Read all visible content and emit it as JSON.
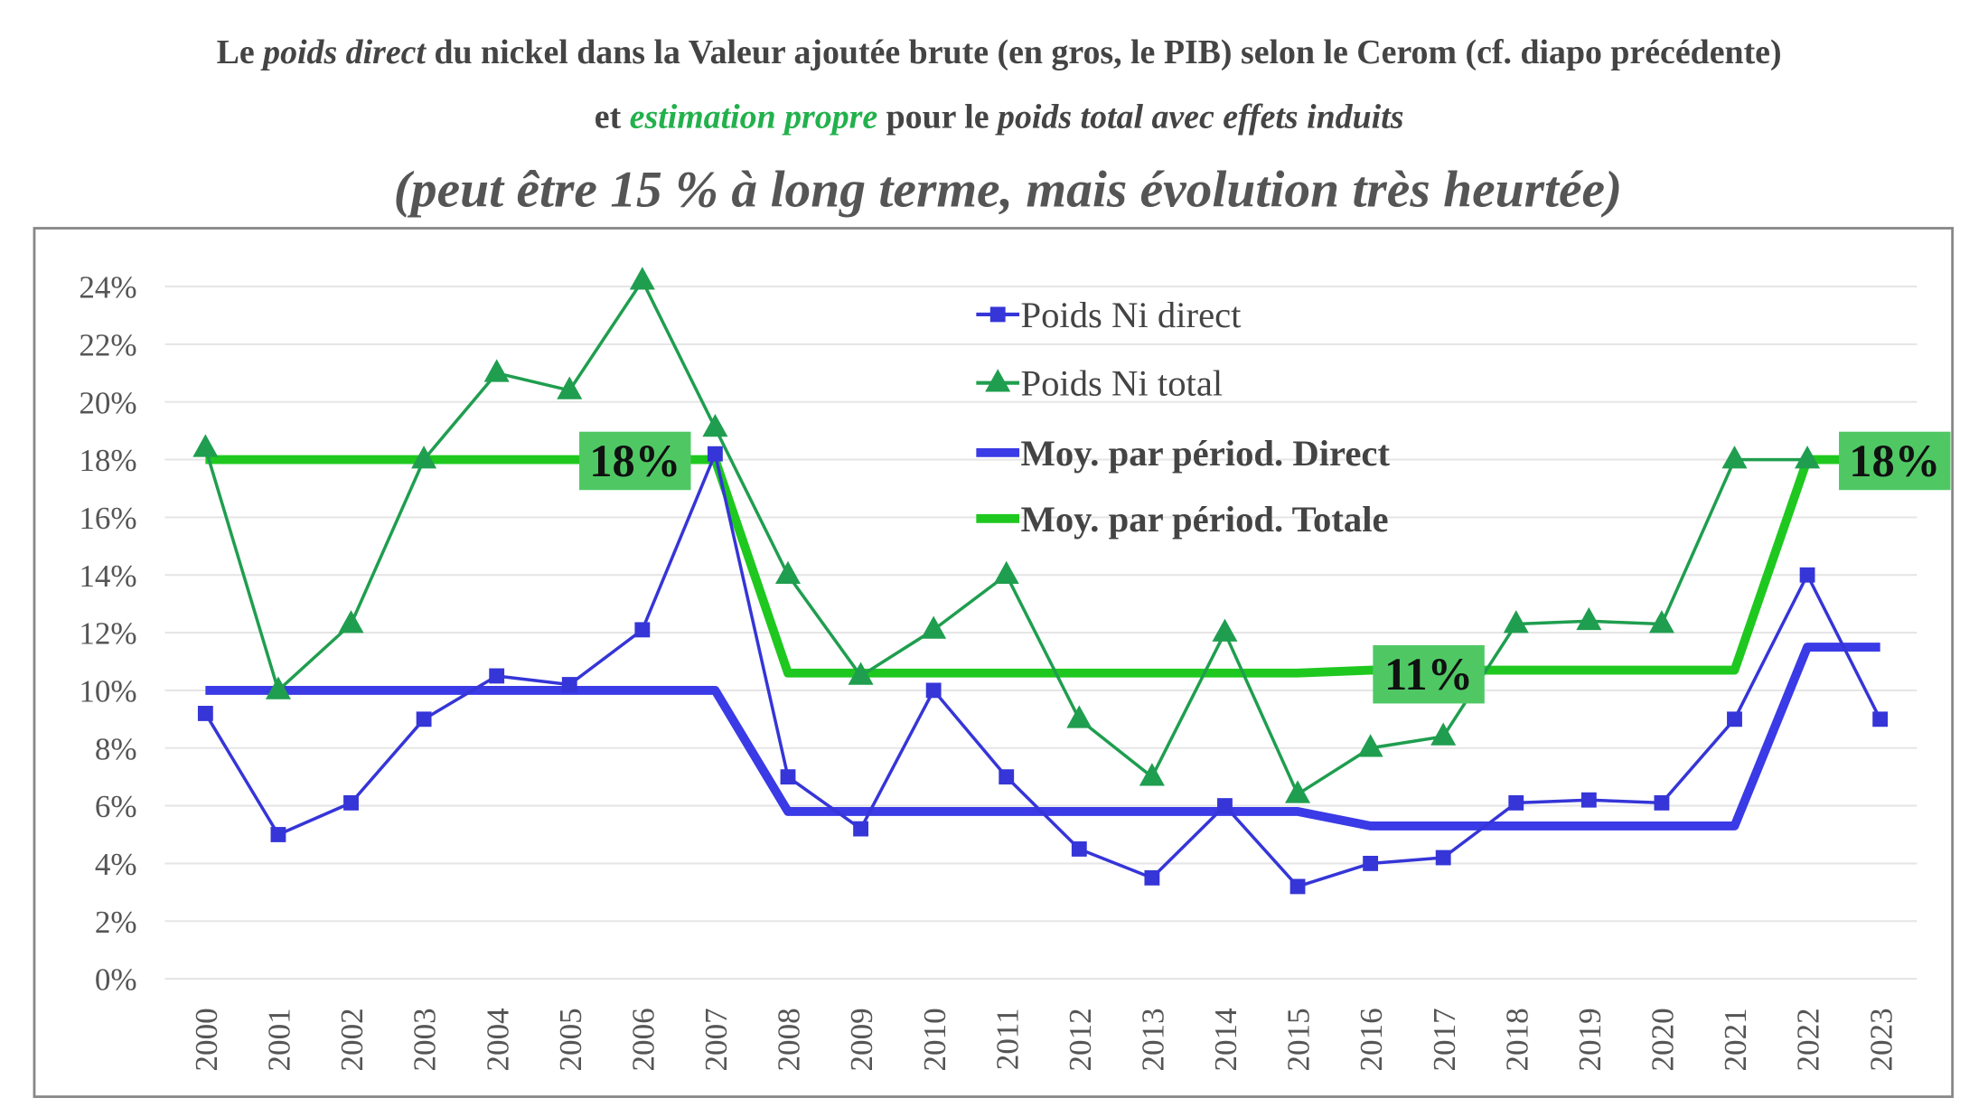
{
  "title": {
    "line1": [
      {
        "text": "Le ",
        "italic": false
      },
      {
        "text": "poids direct",
        "italic": true
      },
      {
        "text": " du nickel dans la Valeur ajoutée brute (en gros, le PIB) selon le  Cerom (cf. diapo précédente)",
        "italic": false
      }
    ],
    "line2": [
      {
        "text": "et ",
        "italic": false,
        "green": false
      },
      {
        "text": "estimation propre",
        "italic": true,
        "green": true
      },
      {
        "text": " pour le ",
        "italic": false,
        "green": false
      },
      {
        "text": "poids total avec effets induits",
        "italic": true,
        "green": false
      }
    ],
    "line3": "(peut être 15 % à long terme, mais évolution très heurtée)"
  },
  "colors": {
    "direct": "#3535d8",
    "total": "#1f9e4f",
    "avg_direct": "#3a3ae6",
    "avg_total": "#1fc81f",
    "label_bg": "#4fc864",
    "grid": "#e6e6e6"
  },
  "chart_data": {
    "type": "line",
    "x": [
      "2000",
      "2001",
      "2002",
      "2003",
      "2004",
      "2005",
      "2006",
      "2007",
      "2008",
      "2009",
      "2010",
      "2011",
      "2012",
      "2013",
      "2014",
      "2015",
      "2016",
      "2017",
      "2018",
      "2019",
      "2020",
      "2021",
      "2022",
      "2023"
    ],
    "ylim": [
      0,
      24
    ],
    "yticks": [
      "0%",
      "2%",
      "4%",
      "6%",
      "8%",
      "10%",
      "12%",
      "14%",
      "16%",
      "18%",
      "20%",
      "22%",
      "24%"
    ],
    "grid": true,
    "legend_position": "top-center",
    "series": [
      {
        "name": "Poids Ni direct",
        "marker": "square",
        "values": [
          9.2,
          5.0,
          6.1,
          9.0,
          10.5,
          10.2,
          12.1,
          18.2,
          7.0,
          5.2,
          10.0,
          7.0,
          4.5,
          3.5,
          6.0,
          3.2,
          4.0,
          4.2,
          6.1,
          6.2,
          6.1,
          9.0,
          14.0,
          9.0
        ]
      },
      {
        "name": "Poids Ni total",
        "marker": "triangle",
        "values": [
          18.4,
          10.0,
          12.3,
          18.0,
          21.0,
          20.4,
          24.2,
          19.1,
          14.0,
          10.5,
          12.1,
          14.0,
          9.0,
          7.0,
          12.0,
          6.4,
          8.0,
          8.4,
          12.3,
          12.4,
          12.3,
          18.0,
          18.0,
          null
        ]
      },
      {
        "name": "Moy. par périod. Direct",
        "marker": "none",
        "values": [
          10,
          10,
          10,
          10,
          10,
          10,
          10,
          10,
          5.8,
          5.8,
          5.8,
          5.8,
          5.8,
          5.8,
          5.8,
          5.8,
          5.3,
          5.3,
          5.3,
          5.3,
          5.3,
          5.3,
          11.5,
          11.5
        ]
      },
      {
        "name": "Moy. par périod. Totale",
        "marker": "none",
        "values": [
          18,
          18,
          18,
          18,
          18,
          18,
          18,
          18,
          10.6,
          10.6,
          10.6,
          10.6,
          10.6,
          10.6,
          10.6,
          10.6,
          10.7,
          10.7,
          10.7,
          10.7,
          10.7,
          10.7,
          18,
          18
        ]
      }
    ],
    "annotations": [
      {
        "text": "18%",
        "x": 5.9,
        "y": 18
      },
      {
        "text": "11%",
        "x": 16.8,
        "y": 10.6
      },
      {
        "text": "18%",
        "x": 23.2,
        "y": 18
      }
    ]
  }
}
